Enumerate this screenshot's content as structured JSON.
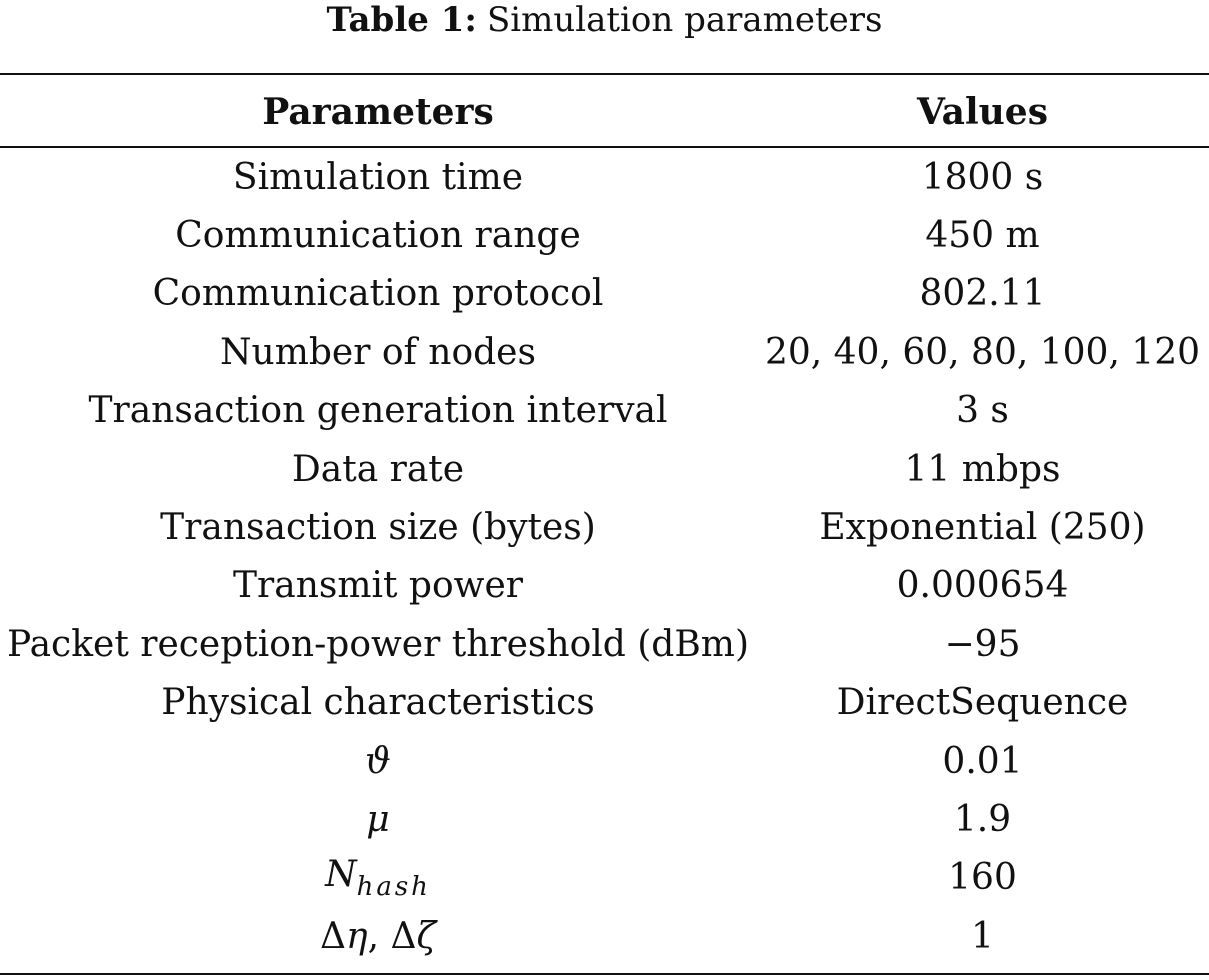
{
  "caption": {
    "label": "Table 1:",
    "text": "Simulation parameters"
  },
  "table": {
    "headers": {
      "parameter": "Parameters",
      "value": "Values"
    },
    "rows": [
      {
        "parameter": "Simulation time",
        "value": "1800 s"
      },
      {
        "parameter": "Communication range",
        "value": "450 m"
      },
      {
        "parameter": "Communication protocol",
        "value": "802.11"
      },
      {
        "parameter": "Number of nodes",
        "value": "20, 40, 60, 80, 100, 120"
      },
      {
        "parameter": "Transaction generation interval",
        "value": "3 s"
      },
      {
        "parameter": "Data rate",
        "value": "11 mbps"
      },
      {
        "parameter": "Transaction size (bytes)",
        "value": "Exponential (250)"
      },
      {
        "parameter": "Transmit power",
        "value": "0.000654"
      },
      {
        "parameter": "Packet reception-power threshold (dBm)",
        "value": "−95"
      },
      {
        "parameter": "Physical characteristics",
        "value": "DirectSequence"
      },
      {
        "parameter": "ϑ",
        "value": "0.01"
      },
      {
        "parameter": "μ",
        "value": "1.9"
      },
      {
        "parameter": "N",
        "parameter_subscript": "hash",
        "value": "160"
      },
      {
        "parameter_delta1": "Δ",
        "parameter_symbol1": "η",
        "parameter_sep": ", ",
        "parameter_delta2": "Δ",
        "parameter_symbol2": "ζ",
        "value": "1"
      }
    ]
  }
}
